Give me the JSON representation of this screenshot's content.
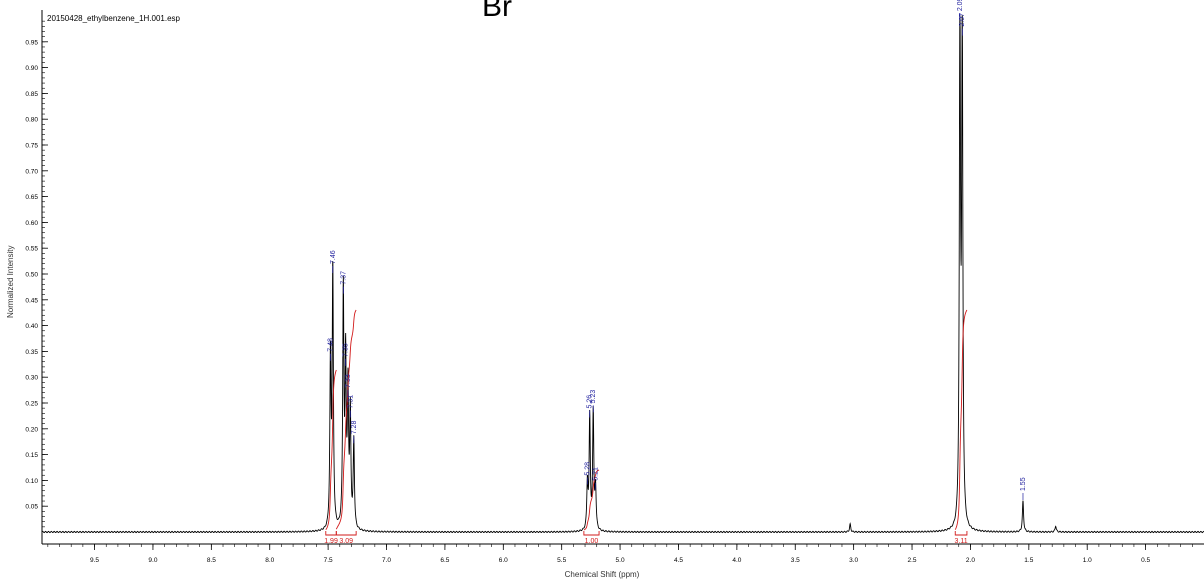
{
  "header": {
    "filename": "20150428_ethylbenzene_1H.001.esp",
    "structure_label": "Br"
  },
  "chart_data": {
    "type": "line",
    "xlabel": "Chemical Shift (ppm)",
    "ylabel": "Normalized Intensity",
    "xlim": [
      9.95,
      0.0
    ],
    "ylim": [
      0.0,
      1.0
    ],
    "x_reversed": true,
    "x_ticks": [
      "9.5",
      "9.0",
      "8.5",
      "8.0",
      "7.5",
      "7.0",
      "6.5",
      "6.0",
      "5.5",
      "5.0",
      "4.5",
      "4.0",
      "3.5",
      "3.0",
      "2.5",
      "2.0",
      "1.5",
      "1.0",
      "0.5"
    ],
    "y_ticks": [
      "0.05",
      "0.10",
      "0.15",
      "0.20",
      "0.25",
      "0.30",
      "0.35",
      "0.40",
      "0.45",
      "0.50",
      "0.55",
      "0.60",
      "0.65",
      "0.70",
      "0.75",
      "0.80",
      "0.85",
      "0.90",
      "0.95"
    ],
    "peaks": [
      {
        "ppm": 7.48,
        "intensity": 0.33
      },
      {
        "ppm": 7.46,
        "intensity": 0.5
      },
      {
        "ppm": 7.37,
        "intensity": 0.46
      },
      {
        "ppm": 7.35,
        "intensity": 0.32
      },
      {
        "ppm": 7.33,
        "intensity": 0.26
      },
      {
        "ppm": 7.31,
        "intensity": 0.22
      },
      {
        "ppm": 7.28,
        "intensity": 0.17
      },
      {
        "ppm": 5.28,
        "intensity": 0.09
      },
      {
        "ppm": 5.26,
        "intensity": 0.22
      },
      {
        "ppm": 5.23,
        "intensity": 0.23
      },
      {
        "ppm": 5.21,
        "intensity": 0.08
      },
      {
        "ppm": 3.03,
        "intensity": 0.015
      },
      {
        "ppm": 2.09,
        "intensity": 0.99
      },
      {
        "ppm": 2.07,
        "intensity": 0.96
      },
      {
        "ppm": 1.55,
        "intensity": 0.06
      },
      {
        "ppm": 1.27,
        "intensity": 0.012
      }
    ],
    "peak_labels": [
      {
        "ppm": 7.48,
        "label": "7.48"
      },
      {
        "ppm": 7.46,
        "label": "7.46"
      },
      {
        "ppm": 7.37,
        "label": "7.37"
      },
      {
        "ppm": 7.35,
        "label": "7.35"
      },
      {
        "ppm": 7.33,
        "label": "7.33"
      },
      {
        "ppm": 7.31,
        "label": "7.31"
      },
      {
        "ppm": 7.28,
        "label": "7.28"
      },
      {
        "ppm": 5.28,
        "label": "5.28"
      },
      {
        "ppm": 5.26,
        "label": "5.26"
      },
      {
        "ppm": 5.23,
        "label": "5.23"
      },
      {
        "ppm": 5.21,
        "label": "5.21"
      },
      {
        "ppm": 2.09,
        "label": "2.09"
      },
      {
        "ppm": 2.07,
        "label": "2.07"
      },
      {
        "ppm": 1.55,
        "label": "1.55"
      }
    ],
    "integrals": [
      {
        "from": 7.52,
        "to": 7.43,
        "value": "1.99"
      },
      {
        "from": 7.43,
        "to": 7.26,
        "value": "3.09"
      },
      {
        "from": 5.31,
        "to": 5.18,
        "value": "1.00"
      },
      {
        "from": 2.13,
        "to": 2.03,
        "value": "3.11"
      }
    ],
    "colors": {
      "spectrum": "#000000",
      "peak_label": "#1f1f9e",
      "integral": "#d21a1a",
      "axis": "#000000"
    }
  }
}
